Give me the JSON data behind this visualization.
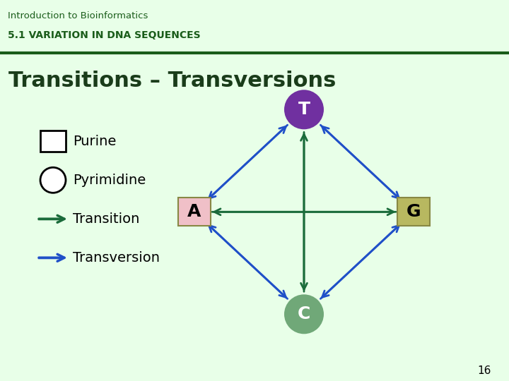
{
  "title": "Transitions – Transversions",
  "header_line1": "Introduction to Bioinformatics",
  "header_line2": "5.1 VARIATION IN DNA SEQUENCES",
  "slide_number": "16",
  "bg_color": "#e8ffe8",
  "header_bg": "#d8ffd8",
  "content_bg": "#e0e0e0",
  "footer_bg": "#d8ffd8",
  "header_text_color": "#1a5c1a",
  "nodes": {
    "T": {
      "shape": "circle",
      "fill": "#7030a0",
      "text_color": "white"
    },
    "C": {
      "shape": "circle",
      "fill": "#70a878",
      "text_color": "white"
    },
    "A": {
      "shape": "square",
      "fill": "#f0c0c8",
      "text_color": "black"
    },
    "G": {
      "shape": "square",
      "fill": "#b8b860",
      "text_color": "black"
    }
  },
  "transition_color": "#1a6b3a",
  "transversion_color": "#2050c8",
  "title_color": "#1a3c1a"
}
